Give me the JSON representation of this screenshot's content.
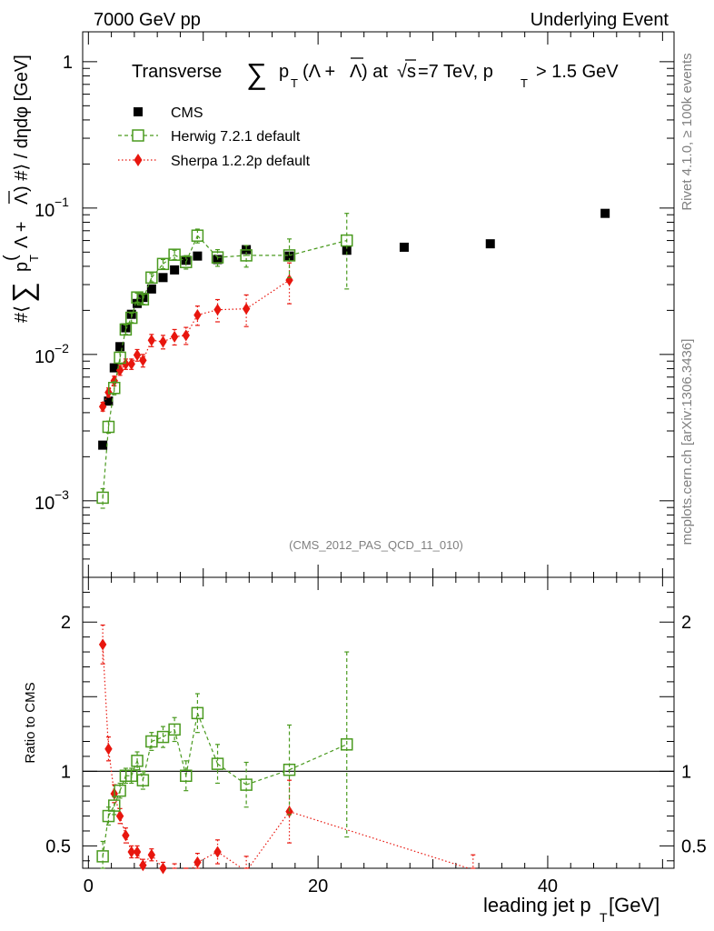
{
  "header": {
    "left": "7000 GeV pp",
    "right": "Underlying Event",
    "side_top": "Rivet 4.1.0, ≥ 100k events",
    "side_bottom": "mcplots.cern.ch [arXiv:1306.3436]"
  },
  "chart_data": [
    {
      "type": "scatter",
      "title": "Transverse ∑ p_T (Λ + Λ̄) at √s=7 TeV, p_T > 1.5 GeV",
      "title_parts": {
        "t1": "Transverse",
        "t2": "∑",
        "t3": "p",
        "t4": "T",
        "t5": "(Λ +",
        "t6": "Λ",
        "t7": ") at",
        "t8": "√s",
        "t9": "=7 TeV, p",
        "t10": "T",
        "t11": "> 1.5 GeV"
      },
      "watermark": "(CMS_2012_PAS_QCD_11_010)",
      "ylabel": "#⟨ ∑ p_T (Λ + Λ̄) #⟩ / dηdφ [GeV]",
      "ylabel_parts": {
        "a": "#⟨",
        "b": "∑",
        "c": "p",
        "d": "T",
        "e": "(",
        "f": "Λ +",
        "g": "Λ",
        "h": ") #⟩ / dηdφ [GeV]"
      },
      "yscale": "log",
      "ylim": [
        0.0003,
        1.6
      ],
      "xlim": [
        -0.5,
        51
      ],
      "yticks": [
        {
          "value": 0.001,
          "base": "10",
          "exp": "−3"
        },
        {
          "value": 0.01,
          "base": "10",
          "exp": "−2"
        },
        {
          "value": 0.1,
          "base": "10",
          "exp": "−1"
        },
        {
          "value": 1,
          "base": "1",
          "exp": ""
        }
      ],
      "series": [
        {
          "name": "CMS",
          "color": "#000000",
          "marker": "filled-square",
          "points": [
            [
              1.25,
              0.0024
            ],
            [
              1.75,
              0.0048
            ],
            [
              2.25,
              0.0081
            ],
            [
              2.75,
              0.0113
            ],
            [
              3.25,
              0.0152
            ],
            [
              3.75,
              0.0188
            ],
            [
              4.25,
              0.0223
            ],
            [
              4.75,
              0.0245
            ],
            [
              5.5,
              0.028
            ],
            [
              6.5,
              0.0335
            ],
            [
              7.5,
              0.0378
            ],
            [
              8.5,
              0.044
            ],
            [
              9.5,
              0.047
            ],
            [
              11.25,
              0.0445
            ],
            [
              13.75,
              0.052
            ],
            [
              17.5,
              0.047
            ],
            [
              22.5,
              0.0515
            ],
            [
              27.5,
              0.054
            ],
            [
              35,
              0.057
            ],
            [
              45,
              0.092
            ]
          ]
        },
        {
          "name": "Herwig 7.2.1 default",
          "color": "#4a9a1f",
          "marker": "open-square",
          "line": "dashed",
          "points": [
            [
              1.25,
              0.00105,
              0.00016
            ],
            [
              1.75,
              0.0032,
              0.0003
            ],
            [
              2.25,
              0.0059,
              0.0006
            ],
            [
              2.75,
              0.0095,
              0.0009
            ],
            [
              3.25,
              0.0148,
              0.0011
            ],
            [
              3.75,
              0.0178,
              0.0013
            ],
            [
              4.25,
              0.0245,
              0.0017
            ],
            [
              4.75,
              0.0238,
              0.0018
            ],
            [
              5.5,
              0.0335,
              0.0022
            ],
            [
              6.5,
              0.0415,
              0.003
            ],
            [
              7.5,
              0.048,
              0.0035
            ],
            [
              8.5,
              0.0428,
              0.0045
            ],
            [
              9.5,
              0.0648,
              0.007
            ],
            [
              11.25,
              0.046,
              0.006
            ],
            [
              13.75,
              0.0475,
              0.008
            ],
            [
              17.5,
              0.0475,
              0.014
            ],
            [
              22.5,
              0.06,
              0.032
            ]
          ]
        },
        {
          "name": "Sherpa 1.2.2p default",
          "color": "#e8160e",
          "marker": "filled-diamond",
          "line": "dotted",
          "points": [
            [
              1.25,
              0.0044,
              0.0003
            ],
            [
              1.75,
              0.0055,
              0.0004
            ],
            [
              2.25,
              0.0066,
              0.0005
            ],
            [
              2.75,
              0.0078,
              0.0006
            ],
            [
              3.25,
              0.0086,
              0.0007
            ],
            [
              3.75,
              0.0086,
              0.0007
            ],
            [
              4.25,
              0.0099,
              0.0009
            ],
            [
              4.75,
              0.0091,
              0.0009
            ],
            [
              5.5,
              0.0125,
              0.0012
            ],
            [
              6.5,
              0.0122,
              0.0013
            ],
            [
              7.5,
              0.0132,
              0.0016
            ],
            [
              8.5,
              0.0135,
              0.0018
            ],
            [
              9.5,
              0.0186,
              0.0028
            ],
            [
              11.25,
              0.0202,
              0.0035
            ],
            [
              13.75,
              0.0205,
              0.005
            ],
            [
              17.5,
              0.0322,
              0.01
            ]
          ]
        }
      ]
    },
    {
      "type": "scatter",
      "title": "",
      "xlabel": "leading jet p_T [GeV]",
      "xlabel_parts": {
        "a": "leading jet p",
        "b": "T",
        "c": " [GeV]"
      },
      "ylabel": "Ratio to CMS",
      "ylim": [
        0.35,
        2.3
      ],
      "xlim": [
        -0.5,
        51
      ],
      "yticks": [
        {
          "value": 0.5,
          "label": "0.5"
        },
        {
          "value": 1,
          "label": "1"
        },
        {
          "value": 2,
          "label": "2"
        }
      ],
      "xticks": [
        {
          "value": 0,
          "label": "0"
        },
        {
          "value": 20,
          "label": "20"
        },
        {
          "value": 40,
          "label": "40"
        }
      ],
      "reference_line": 1,
      "series": [
        {
          "name": "Herwig 7.2.1 default",
          "color": "#4a9a1f",
          "marker": "open-square",
          "line": "dashed",
          "points": [
            [
              1.25,
              0.43,
              0.1
            ],
            [
              1.75,
              0.7,
              0.06
            ],
            [
              2.25,
              0.77,
              0.06
            ],
            [
              2.75,
              0.87,
              0.05
            ],
            [
              3.25,
              0.97,
              0.05
            ],
            [
              3.75,
              0.97,
              0.05
            ],
            [
              4.25,
              1.07,
              0.06
            ],
            [
              4.75,
              0.94,
              0.06
            ],
            [
              5.5,
              1.2,
              0.06
            ],
            [
              6.5,
              1.23,
              0.07
            ],
            [
              7.5,
              1.28,
              0.08
            ],
            [
              8.5,
              0.97,
              0.1
            ],
            [
              9.5,
              1.39,
              0.13
            ],
            [
              11.25,
              1.05,
              0.13
            ],
            [
              13.75,
              0.91,
              0.15
            ],
            [
              17.5,
              1.01,
              0.3
            ],
            [
              22.5,
              1.18,
              0.62
            ]
          ]
        },
        {
          "name": "Sherpa 1.2.2p default",
          "color": "#e8160e",
          "marker": "filled-diamond",
          "line": "dotted",
          "points": [
            [
              1.25,
              1.85,
              0.13
            ],
            [
              1.75,
              1.15,
              0.08
            ],
            [
              2.25,
              0.85,
              0.06
            ],
            [
              2.75,
              0.7,
              0.05
            ],
            [
              3.25,
              0.57,
              0.05
            ],
            [
              3.75,
              0.46,
              0.04
            ],
            [
              4.25,
              0.46,
              0.04
            ],
            [
              4.75,
              0.37,
              0.04
            ],
            [
              5.5,
              0.44,
              0.04
            ],
            [
              6.5,
              0.35,
              0.04
            ],
            [
              7.5,
              0.34,
              0.04
            ],
            [
              8.5,
              0.3,
              0.04
            ],
            [
              9.5,
              0.39,
              0.06
            ],
            [
              11.25,
              0.46,
              0.08
            ],
            [
              13.75,
              0.33,
              0.1
            ],
            [
              17.5,
              0.73,
              0.21
            ],
            [
              33.5,
              0.34,
              0.1
            ]
          ]
        }
      ]
    }
  ]
}
